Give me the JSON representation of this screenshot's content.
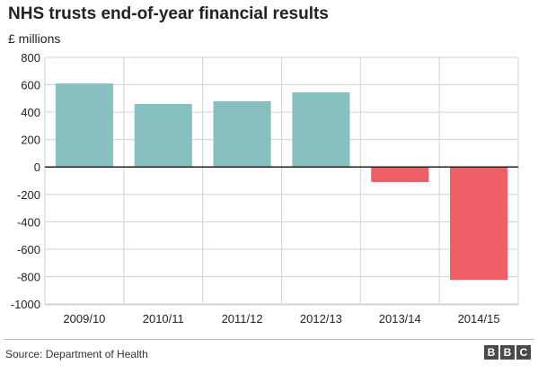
{
  "header": {
    "title": "NHS trusts end-of-year financial results",
    "unit_label": "£ millions"
  },
  "footer": {
    "source": "Source: Department of Health",
    "logo": [
      "B",
      "B",
      "C"
    ]
  },
  "colors": {
    "positive": "#86c1c0",
    "negative": "#ef5f67",
    "zero_line": "#222222",
    "grid": "#d3d3d3"
  },
  "chart_data": {
    "type": "bar",
    "categories": [
      "2009/10",
      "2010/11",
      "2011/12",
      "2012/13",
      "2013/14",
      "2014/15"
    ],
    "values": [
      610,
      460,
      480,
      545,
      -110,
      -825
    ],
    "ylim": [
      -1000,
      800
    ],
    "yticks": [
      800,
      600,
      400,
      200,
      0,
      -200,
      -400,
      -600,
      -800,
      -1000
    ],
    "grid": true,
    "legend": "none"
  }
}
